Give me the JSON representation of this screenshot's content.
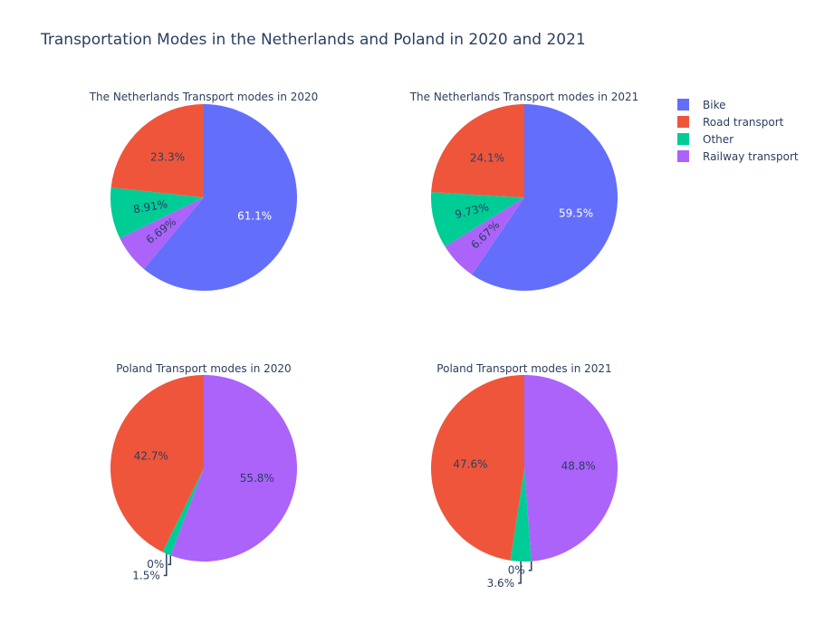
{
  "chart_title": "Transportation Modes in the Netherlands and Poland in 2020 and 2021",
  "colors": {
    "Bike": "#636efa",
    "Road transport": "#ef553b",
    "Other": "#00cc96",
    "Railway transport": "#ab63fa"
  },
  "legend": [
    "Bike",
    "Road transport",
    "Other",
    "Railway transport"
  ],
  "chart_data": [
    {
      "type": "pie",
      "title": "The Netherlands Transport modes in 2020",
      "slices": [
        {
          "label": "Bike",
          "value": 61.1,
          "text": "61.1%"
        },
        {
          "label": "Railway transport",
          "value": 6.69,
          "text": "6.69%"
        },
        {
          "label": "Other",
          "value": 8.91,
          "text": "8.91%"
        },
        {
          "label": "Road transport",
          "value": 23.3,
          "text": "23.3%"
        }
      ]
    },
    {
      "type": "pie",
      "title": "The Netherlands Transport modes in 2021",
      "slices": [
        {
          "label": "Bike",
          "value": 59.5,
          "text": "59.5%"
        },
        {
          "label": "Railway transport",
          "value": 6.67,
          "text": "6.67%"
        },
        {
          "label": "Other",
          "value": 9.73,
          "text": "9.73%"
        },
        {
          "label": "Road transport",
          "value": 24.1,
          "text": "24.1%"
        }
      ]
    },
    {
      "type": "pie",
      "title": "Poland Transport modes in 2020",
      "slices": [
        {
          "label": "Railway transport",
          "value": 55.8,
          "text": "55.8%"
        },
        {
          "label": "Bike",
          "value": 0,
          "text": "0%"
        },
        {
          "label": "Other",
          "value": 1.5,
          "text": "1.5%"
        },
        {
          "label": "Road transport",
          "value": 42.7,
          "text": "42.7%"
        }
      ]
    },
    {
      "type": "pie",
      "title": "Poland Transport modes in 2021",
      "slices": [
        {
          "label": "Railway transport",
          "value": 48.8,
          "text": "48.8%"
        },
        {
          "label": "Bike",
          "value": 0,
          "text": "0%"
        },
        {
          "label": "Other",
          "value": 3.6,
          "text": "3.6%"
        },
        {
          "label": "Road transport",
          "value": 47.6,
          "text": "47.6%"
        }
      ]
    }
  ]
}
